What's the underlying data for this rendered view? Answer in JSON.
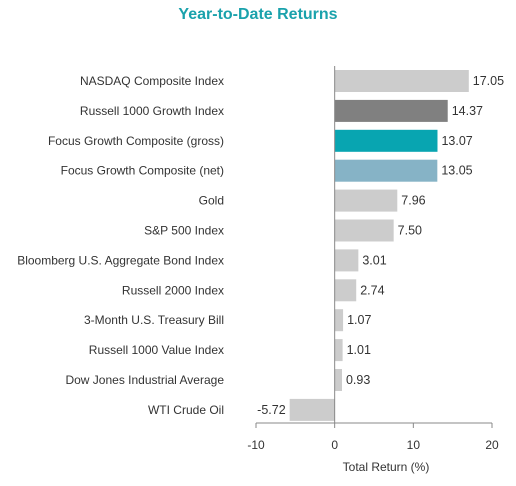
{
  "chart_data": {
    "type": "bar",
    "orientation": "horizontal",
    "title": "Year-to-Date Returns",
    "xlabel": "Total Return (%)",
    "ylabel": "",
    "xlim": [
      -10,
      20
    ],
    "xticks": [
      -10,
      0,
      10,
      20
    ],
    "grid": false,
    "categories": [
      "NASDAQ Composite Index",
      "Russell 1000 Growth Index",
      "Focus Growth Composite (gross)",
      "Focus Growth Composite (net)",
      "Gold",
      "S&P 500 Index",
      "Bloomberg U.S. Aggregate Bond Index",
      "Russell 2000 Index",
      "3-Month U.S. Treasury Bill",
      "Russell 1000 Value Index",
      "Dow Jones Industrial Average",
      "WTI Crude Oil"
    ],
    "values": [
      17.05,
      14.37,
      13.07,
      13.05,
      7.96,
      7.5,
      3.01,
      2.74,
      1.07,
      1.01,
      0.93,
      -5.72
    ],
    "value_labels": [
      "17.05",
      "14.37",
      "13.07",
      "13.05",
      "7.96",
      "7.50",
      "3.01",
      "2.74",
      "1.07",
      "1.01",
      "0.93",
      "-5.72"
    ],
    "colors": [
      "#cccccc",
      "#808080",
      "#08a5b1",
      "#86b3c6",
      "#cccccc",
      "#cccccc",
      "#cccccc",
      "#cccccc",
      "#cccccc",
      "#cccccc",
      "#cccccc",
      "#cccccc"
    ],
    "title_color": "#1aa2ac"
  }
}
